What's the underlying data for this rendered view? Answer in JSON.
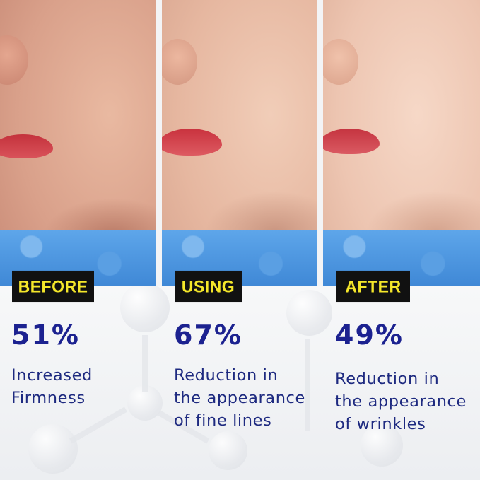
{
  "panels": [
    {
      "label": "BEFORE",
      "percent": "51%",
      "description": "Increased\nFirmness"
    },
    {
      "label": "USING",
      "percent": "67%",
      "description": "Reduction in\nthe appearance\nof fine lines"
    },
    {
      "label": "AFTER",
      "percent": "49%",
      "description": "Reduction in\nthe appearance\nof wrinkles"
    }
  ],
  "colors": {
    "label_bg": "#111111",
    "label_text": "#f5e72a",
    "percent": "#1c2290",
    "description": "#1e2a80",
    "towel": "#4a93dd"
  }
}
